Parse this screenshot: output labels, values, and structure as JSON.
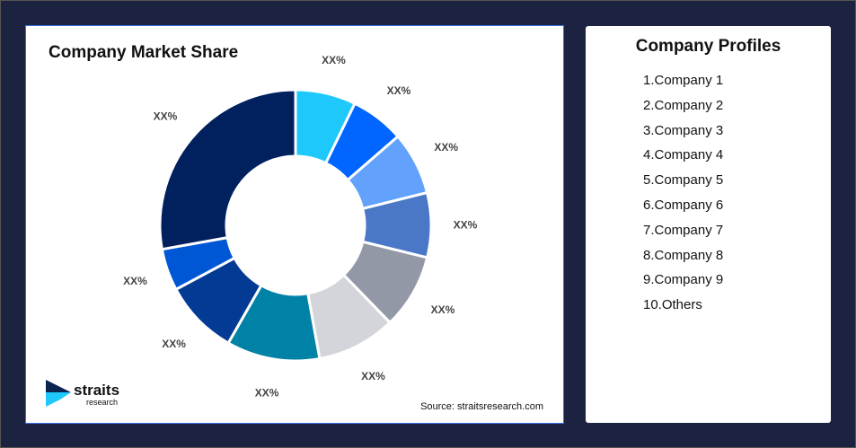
{
  "chart_data": {
    "type": "pie",
    "donut": true,
    "title": "Company Market Share",
    "labels": [
      "XX%",
      "XX%",
      "XX%",
      "XX%",
      "XX%",
      "XX%",
      "XX%",
      "XX%",
      "XX%",
      "XX%"
    ],
    "values": [
      7.2,
      6.4,
      7.5,
      7.7,
      8.9,
      9.4,
      11.1,
      8.9,
      5.0,
      27.8
    ],
    "colors": [
      "#1fc8fb",
      "#0066ff",
      "#62a2fc",
      "#4a78c6",
      "#9398a6",
      "#d4d5da",
      "#0082a6",
      "#023a94",
      "#0057d6",
      "#00205e"
    ],
    "legend": "none"
  },
  "source": "Source: straitsresearch.com",
  "logo": {
    "text": "straits",
    "subtext": "research"
  },
  "profiles": {
    "title": "Company Profiles",
    "items": [
      "1.Company 1",
      "2.Company 2",
      "3.Company 3",
      "4.Company 4",
      "5.Company 5",
      "6.Company 6",
      "7.Company 7",
      "8.Company 8",
      "9.Company 9",
      "10.Others"
    ]
  }
}
